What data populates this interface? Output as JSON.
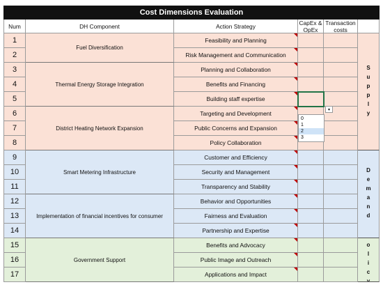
{
  "title": "Cost Dimensions Evaluation",
  "headers": [
    "Num",
    "DH Component",
    "Action Strategy",
    "CapEx & OpEx",
    "Transaction costs"
  ],
  "groups": [
    {
      "component": "Fuel Diversification",
      "rows": [
        {
          "num": 1,
          "strategy": "Feasibility and Planning"
        },
        {
          "num": 2,
          "strategy": "Risk Management and Communication"
        }
      ]
    },
    {
      "component": "Thermal Energy Storage Integration",
      "rows": [
        {
          "num": 3,
          "strategy": "Planning and Collaboration"
        },
        {
          "num": 4,
          "strategy": "Benefits and Financing"
        },
        {
          "num": 5,
          "strategy": "Building staff expertise"
        }
      ]
    },
    {
      "component": "District Heating Network Expansion",
      "rows": [
        {
          "num": 6,
          "strategy": "Targeting and Development"
        },
        {
          "num": 7,
          "strategy": "Public Concerns and Expansion"
        },
        {
          "num": 8,
          "strategy": "Policy Collaboration"
        }
      ]
    },
    {
      "component": "Smart Metering Infrastructure",
      "rows": [
        {
          "num": 9,
          "strategy": "Customer and Efficiency"
        },
        {
          "num": 10,
          "strategy": "Security and Management"
        },
        {
          "num": 11,
          "strategy": "Transparency and Stability"
        }
      ]
    },
    {
      "component": "Implementation of financial incentives for consumer",
      "rows": [
        {
          "num": 12,
          "strategy": "Behavior and Opportunities"
        },
        {
          "num": 13,
          "strategy": "Fairness and Evaluation"
        },
        {
          "num": 14,
          "strategy": "Partnership and Expertise"
        }
      ]
    },
    {
      "component": "Government Support",
      "rows": [
        {
          "num": 15,
          "strategy": "Benefits and Advocacy"
        },
        {
          "num": 16,
          "strategy": "Public Image and Outreach"
        },
        {
          "num": 17,
          "strategy": "Applications and Impact"
        }
      ]
    }
  ],
  "sections": [
    {
      "label": "Supply",
      "groups": 3
    },
    {
      "label": "Demand",
      "groups": 2
    },
    {
      "label": "Policy",
      "groups": 1
    }
  ],
  "dropdown_options": [
    "0",
    "1",
    "2",
    "3"
  ]
}
